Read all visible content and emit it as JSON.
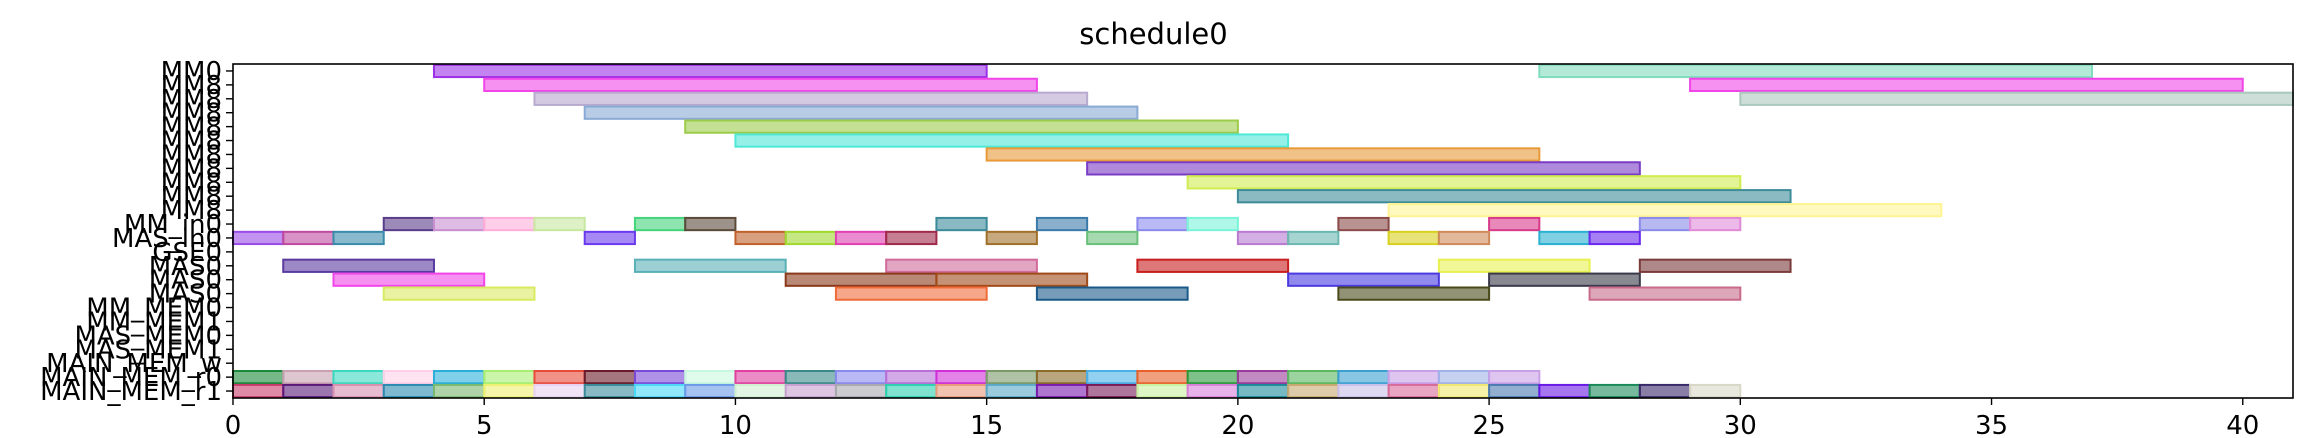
{
  "chart_data": {
    "type": "gantt",
    "title": "schedule0",
    "xlim": [
      0,
      41
    ],
    "xticks": [
      0,
      5,
      10,
      15,
      20,
      25,
      30,
      35,
      40
    ],
    "xtick_labels": [
      "0",
      "5",
      "10",
      "15",
      "20",
      "25",
      "30",
      "35",
      "40"
    ],
    "rows": [
      "MM0",
      "MM8",
      "MM8",
      "MM8",
      "MM8",
      "MM8",
      "MM8",
      "MM8",
      "MM8",
      "MM8",
      "MM8",
      "MM_in0",
      "MAS_in0",
      "GSE0",
      "MAS0",
      "MAS0",
      "MAS0",
      "MM_MEM0",
      "MM_MEM1",
      "MAS_MEM0",
      "MAS_MEM1",
      "MAIN_MEM_w",
      "MAIN_MEM_r0",
      "MAIN_MEM_r1"
    ],
    "bars": [
      {
        "row": 0,
        "start": 4,
        "end": 15,
        "color": "#9b30e6"
      },
      {
        "row": 0,
        "start": 26,
        "end": 37,
        "color": "#7fdcbc"
      },
      {
        "row": 1,
        "start": 5,
        "end": 16,
        "color": "#f046e8"
      },
      {
        "row": 1,
        "start": 29,
        "end": 40,
        "color": "#f046e8"
      },
      {
        "row": 2,
        "start": 6,
        "end": 17,
        "color": "#b8a9cf"
      },
      {
        "row": 2,
        "start": 30,
        "end": 41,
        "color": "#aac8bd"
      },
      {
        "row": 3,
        "start": 7,
        "end": 18,
        "color": "#88aad4"
      },
      {
        "row": 4,
        "start": 9,
        "end": 20,
        "color": "#9ccc4a"
      },
      {
        "row": 5,
        "start": 10,
        "end": 21,
        "color": "#4ee8d8"
      },
      {
        "row": 6,
        "start": 15,
        "end": 26,
        "color": "#e89a38"
      },
      {
        "row": 7,
        "start": 17,
        "end": 28,
        "color": "#7a3cc4"
      },
      {
        "row": 8,
        "start": 19,
        "end": 30,
        "color": "#d0ec50"
      },
      {
        "row": 9,
        "start": 20,
        "end": 31,
        "color": "#3f8c99"
      },
      {
        "row": 10,
        "start": 23,
        "end": 34,
        "color": "#fff494"
      },
      {
        "row": 11,
        "start": 3,
        "end": 4,
        "color": "#5a3d8a"
      },
      {
        "row": 11,
        "start": 4,
        "end": 5,
        "color": "#c98fd0"
      },
      {
        "row": 11,
        "start": 5,
        "end": 6,
        "color": "#ffaed8"
      },
      {
        "row": 11,
        "start": 6,
        "end": 7,
        "color": "#c8e8a0"
      },
      {
        "row": 11,
        "start": 8,
        "end": 9,
        "color": "#44d47a"
      },
      {
        "row": 11,
        "start": 9,
        "end": 10,
        "color": "#5a4a3a"
      },
      {
        "row": 11,
        "start": 14,
        "end": 15,
        "color": "#3a8a9a"
      },
      {
        "row": 11,
        "start": 16,
        "end": 17,
        "color": "#3a7aaa"
      },
      {
        "row": 11,
        "start": 18,
        "end": 19,
        "color": "#8a8aee"
      },
      {
        "row": 11,
        "start": 19,
        "end": 20,
        "color": "#7af4d8"
      },
      {
        "row": 11,
        "start": 22,
        "end": 23,
        "color": "#8a4a4a"
      },
      {
        "row": 11,
        "start": 25,
        "end": 26,
        "color": "#d83a8a"
      },
      {
        "row": 11,
        "start": 28,
        "end": 29,
        "color": "#8a8aea"
      },
      {
        "row": 11,
        "start": 29,
        "end": 30,
        "color": "#e08ad8"
      },
      {
        "row": 12,
        "start": 0,
        "end": 1,
        "color": "#9a4ae8"
      },
      {
        "row": 12,
        "start": 1,
        "end": 2,
        "color": "#c04aa0"
      },
      {
        "row": 12,
        "start": 2,
        "end": 3,
        "color": "#3a8aaa"
      },
      {
        "row": 12,
        "start": 7,
        "end": 8,
        "color": "#6a3aee"
      },
      {
        "row": 12,
        "start": 10,
        "end": 11,
        "color": "#c0602a"
      },
      {
        "row": 12,
        "start": 11,
        "end": 12,
        "color": "#a0d830"
      },
      {
        "row": 12,
        "start": 12,
        "end": 13,
        "color": "#e040b0"
      },
      {
        "row": 12,
        "start": 13,
        "end": 14,
        "color": "#a02a4a"
      },
      {
        "row": 12,
        "start": 15,
        "end": 16,
        "color": "#a0702a"
      },
      {
        "row": 12,
        "start": 17,
        "end": 18,
        "color": "#6ac07a"
      },
      {
        "row": 12,
        "start": 20,
        "end": 21,
        "color": "#b87ad0"
      },
      {
        "row": 12,
        "start": 21,
        "end": 22,
        "color": "#6ab8b0"
      },
      {
        "row": 12,
        "start": 23,
        "end": 24,
        "color": "#d8d020"
      },
      {
        "row": 12,
        "start": 24,
        "end": 25,
        "color": "#d08a5a"
      },
      {
        "row": 12,
        "start": 26,
        "end": 27,
        "color": "#2ab0d0"
      },
      {
        "row": 12,
        "start": 27,
        "end": 28,
        "color": "#6a2aee"
      },
      {
        "row": 14,
        "start": 1,
        "end": 4,
        "color": "#5a3aa0"
      },
      {
        "row": 14,
        "start": 8,
        "end": 11,
        "color": "#5ab0b8"
      },
      {
        "row": 14,
        "start": 13,
        "end": 16,
        "color": "#d06a9a"
      },
      {
        "row": 14,
        "start": 18,
        "end": 21,
        "color": "#c81e1e"
      },
      {
        "row": 14,
        "start": 24,
        "end": 27,
        "color": "#e8f050"
      },
      {
        "row": 14,
        "start": 28,
        "end": 31,
        "color": "#7a3a3a"
      },
      {
        "row": 15,
        "start": 2,
        "end": 5,
        "color": "#f046e8"
      },
      {
        "row": 15,
        "start": 11,
        "end": 14,
        "color": "#8a3a1a"
      },
      {
        "row": 15,
        "start": 14,
        "end": 17,
        "color": "#a04a1a"
      },
      {
        "row": 15,
        "start": 21,
        "end": 24,
        "color": "#4a3ae0"
      },
      {
        "row": 15,
        "start": 25,
        "end": 28,
        "color": "#3a3a4a"
      },
      {
        "row": 16,
        "start": 3,
        "end": 6,
        "color": "#d8ea60"
      },
      {
        "row": 16,
        "start": 12,
        "end": 15,
        "color": "#f06a3a"
      },
      {
        "row": 16,
        "start": 16,
        "end": 19,
        "color": "#1a5a8a"
      },
      {
        "row": 16,
        "start": 22,
        "end": 25,
        "color": "#4a4a1a"
      },
      {
        "row": 16,
        "start": 27,
        "end": 30,
        "color": "#c86a8a"
      }
    ],
    "mem_w_colors": [
      "#1a8a3a",
      "#c8a0b0",
      "#3ad8c0",
      "#ffd0e8",
      "#2ab0d8",
      "#a8ee70",
      "#e84a3a",
      "#6a1a2a",
      "#7a4ad8",
      "#c8f8e0",
      "#e040a0",
      "#3a8a8a",
      "#8a8aee",
      "#b870d8",
      "#d030d8",
      "#7a9a6a",
      "#8a6a2a",
      "#4ab0e8",
      "#e8602a",
      "#2a9a3a",
      "#9a3a9a",
      "#5ab860",
      "#3aa0d0",
      "#c8a0e8",
      "#a0b0e8",
      "#c8a0e8"
    ],
    "mem_r0_colors": [
      "#c83a6a",
      "#5a1a7a",
      "#d890b0",
      "#2a8ab0",
      "#7ab870",
      "#eef070",
      "#e8d0f0",
      "#3a8a9a",
      "#4ad8f8",
      "#6a9ae8",
      "#d0f0d0",
      "#c8a0d0",
      "#a8a8b0",
      "#2ad0b0",
      "#e89a7a",
      "#5aa8c8",
      "#7a1ab0",
      "#7a1a5a",
      "#c8f0a0",
      "#d880d8",
      "#1a8a9a",
      "#c8a870",
      "#c8c0e8",
      "#d86a9a",
      "#f0e870",
      "#4a7ab0",
      "#6a1ae8",
      "#1a8a5a",
      "#3a2a6a",
      "#d8d8c8"
    ]
  }
}
